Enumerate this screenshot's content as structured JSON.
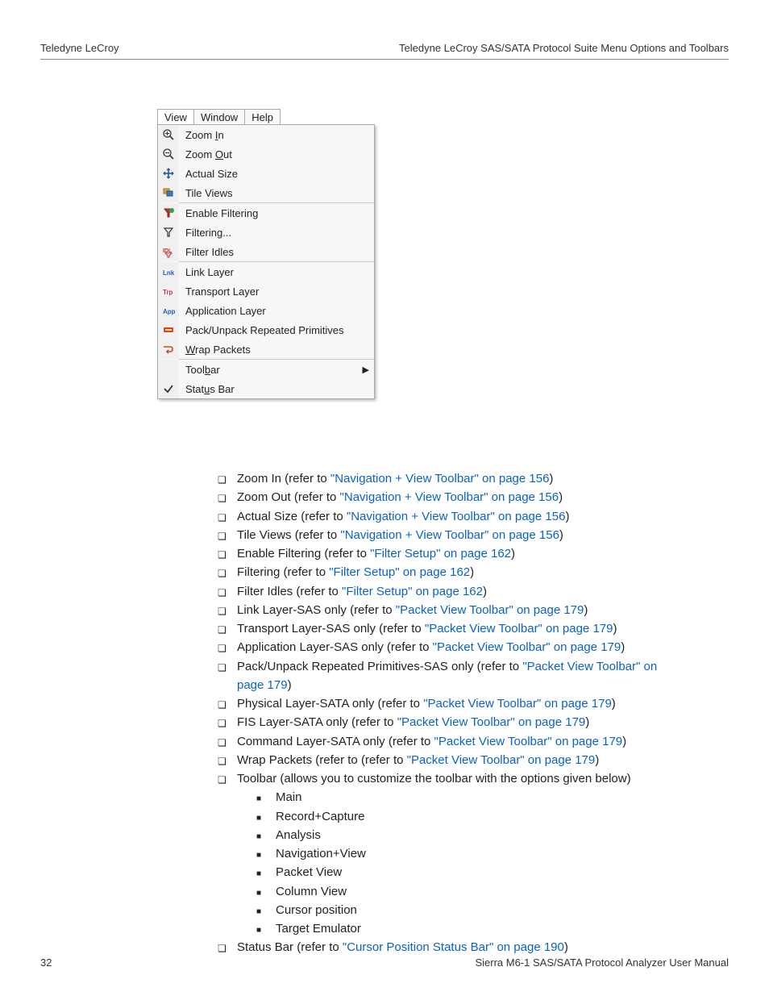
{
  "header": {
    "left": "Teledyne LeCroy",
    "right": "Teledyne LeCroy SAS/SATA Protocol Suite Menu Options and Toolbars"
  },
  "footer": {
    "page": "32",
    "title": "Sierra M6-1 SAS/SATA Protocol Analyzer User Manual"
  },
  "link_color": "#0b62c4",
  "menu": {
    "tabs": [
      "View",
      "Window",
      "Help"
    ],
    "selected_tab": 0,
    "groups": [
      {
        "items": [
          {
            "icon": "zoom-in",
            "label": "Zoom In",
            "u": 5
          },
          {
            "icon": "zoom-out",
            "label": "Zoom Out",
            "u": 5
          },
          {
            "icon": "actual-size",
            "label": "Actual Size"
          },
          {
            "icon": "tile",
            "label": "Tile Views"
          }
        ]
      },
      {
        "items": [
          {
            "icon": "filter-enable",
            "label": "Enable Filtering"
          },
          {
            "icon": "filter",
            "label": "Filtering..."
          },
          {
            "icon": "filter-idles",
            "label": "Filter Idles"
          }
        ]
      },
      {
        "items": [
          {
            "icon": "link-layer",
            "label": "Link Layer"
          },
          {
            "icon": "transport-layer",
            "label": "Transport Layer"
          },
          {
            "icon": "app-layer",
            "label": "Application Layer"
          },
          {
            "icon": "pack",
            "label": "Pack/Unpack Repeated Primitives"
          },
          {
            "icon": "wrap",
            "label": "Wrap Packets",
            "u": 0
          }
        ]
      },
      {
        "items": [
          {
            "icon": "",
            "label": "Toolbar",
            "u": 4,
            "submenu": true
          },
          {
            "icon": "check",
            "label": "Status Bar",
            "u": 4
          }
        ]
      }
    ]
  },
  "refs": {
    "nav156": "\"Navigation + View Toolbar\" on page 156",
    "filter162": "\"Filter Setup\" on page 162",
    "pkt179": "\"Packet View Toolbar\" on page 179",
    "pkt179b": "page 179",
    "cursor190": "\"Cursor Position Status Bar\" on page 190"
  },
  "items": [
    {
      "pre": "Zoom In (refer to ",
      "link": "nav156",
      "post": ")"
    },
    {
      "pre": "Zoom Out (refer to ",
      "link": "nav156",
      "post": ")"
    },
    {
      "pre": "Actual Size (refer to ",
      "link": "nav156",
      "post": ")"
    },
    {
      "pre": "Tile Views (refer to ",
      "link": "nav156",
      "post": ")"
    },
    {
      "pre": "Enable Filtering (refer to ",
      "link": "filter162",
      "post": ")"
    },
    {
      "pre": "Filtering (refer to ",
      "link": "filter162",
      "post": ")"
    },
    {
      "pre": "Filter Idles (refer to ",
      "link": "filter162",
      "post": ")"
    },
    {
      "pre": "Link Layer-SAS only (refer to ",
      "link": "pkt179",
      "post": ")"
    },
    {
      "pre": "Transport Layer-SAS only (refer to ",
      "link": "pkt179",
      "post": ")"
    },
    {
      "pre": "Application Layer-SAS only (refer to ",
      "link": "pkt179",
      "post": ")"
    },
    {
      "pre": "Pack/Unpack Repeated Primitives-SAS only (refer to ",
      "link": "pkt179",
      "post": "",
      "wrap": true
    },
    {
      "pre": "Physical Layer-SATA only (refer to ",
      "link": "pkt179",
      "post": ")"
    },
    {
      "pre": "FIS Layer-SATA only (refer to ",
      "link": "pkt179",
      "post": ")"
    },
    {
      "pre": "Command Layer-SATA only (refer to ",
      "link": "pkt179",
      "post": ")"
    },
    {
      "pre": "Wrap Packets (refer to (refer to ",
      "link": "pkt179",
      "post": ")"
    },
    {
      "pre": "Toolbar (allows you to customize the toolbar with the options given below)",
      "link": null,
      "subs": [
        "Main",
        "Record+Capture",
        "Analysis",
        "Navigation+View",
        "Packet View",
        "Column View",
        "Cursor position",
        "Target Emulator"
      ]
    },
    {
      "pre": "Status Bar (refer to ",
      "link": "cursor190",
      "post": ")"
    }
  ]
}
